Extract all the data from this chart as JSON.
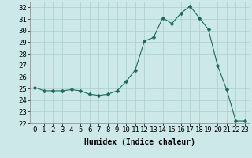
{
  "x": [
    0,
    1,
    2,
    3,
    4,
    5,
    6,
    7,
    8,
    9,
    10,
    11,
    12,
    13,
    14,
    15,
    16,
    17,
    18,
    19,
    20,
    21,
    22,
    23
  ],
  "y": [
    25.1,
    24.8,
    24.8,
    24.8,
    24.9,
    24.8,
    24.5,
    24.4,
    24.5,
    24.8,
    25.6,
    26.6,
    29.1,
    29.4,
    31.1,
    30.6,
    31.5,
    32.1,
    31.1,
    30.1,
    27.0,
    24.9,
    22.2,
    22.2
  ],
  "line_color": "#1a6b5a",
  "marker": "D",
  "marker_size": 2.5,
  "bg_color": "#cce8e8",
  "grid_color": "#aacece",
  "xlabel": "Humidex (Indice chaleur)",
  "ylim": [
    22,
    32.5
  ],
  "yticks": [
    22,
    23,
    24,
    25,
    26,
    27,
    28,
    29,
    30,
    31,
    32
  ],
  "xticks": [
    0,
    1,
    2,
    3,
    4,
    5,
    6,
    7,
    8,
    9,
    10,
    11,
    12,
    13,
    14,
    15,
    16,
    17,
    18,
    19,
    20,
    21,
    22,
    23
  ],
  "font_size_label": 7,
  "font_size_tick": 6.5
}
